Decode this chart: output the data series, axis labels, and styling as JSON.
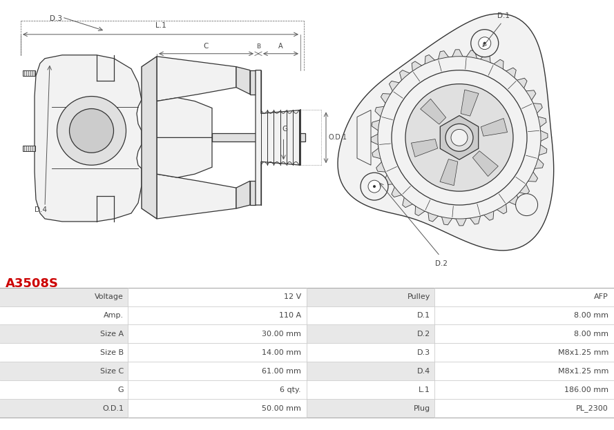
{
  "title": "A3508S",
  "title_color": "#cc0000",
  "bg_color": "#ffffff",
  "table_row_bg_odd": "#e8e8e8",
  "table_row_bg_even": "#ffffff",
  "line_color": "#555555",
  "dim_color": "#666666",
  "text_color": "#444444",
  "fill_light": "#f2f2f2",
  "fill_mid": "#e0e0e0",
  "fill_dark": "#cccccc",
  "left_col_labels": [
    "Voltage",
    "Amp.",
    "Size A",
    "Size B",
    "Size C",
    "G",
    "O.D.1"
  ],
  "left_col_values": [
    "12 V",
    "110 A",
    "30.00 mm",
    "14.00 mm",
    "61.00 mm",
    "6 qty.",
    "50.00 mm"
  ],
  "right_col_labels": [
    "Pulley",
    "D.1",
    "D.2",
    "D.3",
    "D.4",
    "L.1",
    "Plug"
  ],
  "right_col_values": [
    "AFP",
    "8.00 mm",
    "8.00 mm",
    "M8x1.25 mm",
    "M8x1.25 mm",
    "186.00 mm",
    "PL_2300"
  ]
}
